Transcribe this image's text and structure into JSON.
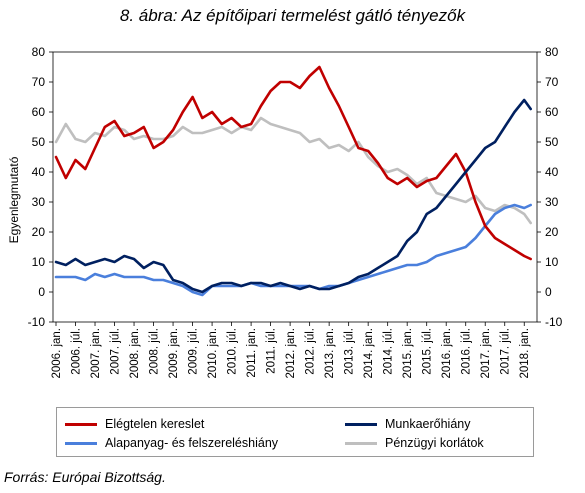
{
  "chart_data": {
    "type": "line",
    "title": "8. ábra: Az építőipari termelést gátló tényezők",
    "ylabel": "Egyenlegmutató",
    "ylim": [
      -10,
      80
    ],
    "yticks": [
      -10,
      0,
      10,
      20,
      30,
      40,
      50,
      60,
      70,
      80
    ],
    "dual_axis_mirrored": true,
    "x_tick_labels": [
      "2006. jan.",
      "2006. júl.",
      "2007. jan.",
      "2007. júl.",
      "2008. jan.",
      "2008. júl.",
      "2009. jan.",
      "2009. júl.",
      "2010. jan.",
      "2010. júl.",
      "2011. jan.",
      "2011. júl.",
      "2012. jan.",
      "2012. júl.",
      "2013. jan.",
      "2013. júl.",
      "2014. jan.",
      "2014. júl.",
      "2015. jan.",
      "2015. júl.",
      "2016. jan.",
      "2016. júl.",
      "2017. jan.",
      "2017. júl.",
      "2018. jan."
    ],
    "x_dates": [
      "2006-01",
      "2006-04",
      "2006-07",
      "2006-10",
      "2007-01",
      "2007-04",
      "2007-07",
      "2007-10",
      "2008-01",
      "2008-04",
      "2008-07",
      "2008-10",
      "2009-01",
      "2009-04",
      "2009-07",
      "2009-10",
      "2010-01",
      "2010-04",
      "2010-07",
      "2010-10",
      "2011-01",
      "2011-04",
      "2011-07",
      "2011-10",
      "2012-01",
      "2012-04",
      "2012-07",
      "2012-10",
      "2013-01",
      "2013-04",
      "2013-07",
      "2013-10",
      "2014-01",
      "2014-04",
      "2014-07",
      "2014-10",
      "2015-01",
      "2015-04",
      "2015-07",
      "2015-10",
      "2016-01",
      "2016-04",
      "2016-07",
      "2016-10",
      "2017-01",
      "2017-04",
      "2017-07",
      "2017-10",
      "2018-01",
      "2018-03"
    ],
    "series": [
      {
        "name": "Elégtelen kereslet",
        "color": "#c00000",
        "values": [
          45,
          38,
          44,
          41,
          48,
          55,
          57,
          52,
          53,
          55,
          48,
          50,
          54,
          60,
          65,
          58,
          60,
          56,
          58,
          55,
          56,
          62,
          67,
          70,
          70,
          68,
          72,
          75,
          68,
          62,
          55,
          48,
          47,
          43,
          38,
          36,
          38,
          35,
          37,
          38,
          42,
          46,
          40,
          30,
          22,
          18,
          16,
          14,
          12,
          11
        ]
      },
      {
        "name": "Munkaerőhiány",
        "color": "#002060",
        "values": [
          10,
          9,
          11,
          9,
          10,
          11,
          10,
          12,
          11,
          8,
          10,
          9,
          4,
          3,
          1,
          0,
          2,
          3,
          3,
          2,
          3,
          3,
          2,
          3,
          2,
          1,
          2,
          1,
          1,
          2,
          3,
          5,
          6,
          8,
          10,
          12,
          17,
          20,
          26,
          28,
          32,
          36,
          40,
          44,
          48,
          50,
          55,
          60,
          64,
          61
        ]
      },
      {
        "name": "Alapanyag- és felszereléshiány",
        "color": "#4a7fdc",
        "values": [
          5,
          5,
          5,
          4,
          6,
          5,
          6,
          5,
          5,
          5,
          4,
          4,
          3,
          2,
          0,
          -1,
          2,
          2,
          2,
          2,
          3,
          2,
          2,
          2,
          2,
          2,
          2,
          1,
          2,
          2,
          3,
          4,
          5,
          6,
          7,
          8,
          9,
          9,
          10,
          12,
          13,
          14,
          15,
          18,
          22,
          26,
          28,
          29,
          28,
          29
        ]
      },
      {
        "name": "Pénzügyi korlátok",
        "color": "#bfbfbf",
        "values": [
          50,
          56,
          51,
          50,
          53,
          52,
          55,
          54,
          51,
          52,
          51,
          51,
          52,
          55,
          53,
          53,
          54,
          55,
          53,
          55,
          54,
          58,
          56,
          55,
          54,
          53,
          50,
          51,
          48,
          49,
          47,
          50,
          45,
          42,
          40,
          41,
          39,
          36,
          38,
          33,
          32,
          31,
          30,
          32,
          28,
          27,
          29,
          28,
          26,
          23
        ]
      }
    ],
    "legend_position": "bottom"
  },
  "source": "Forrás: Európai Bizottság."
}
